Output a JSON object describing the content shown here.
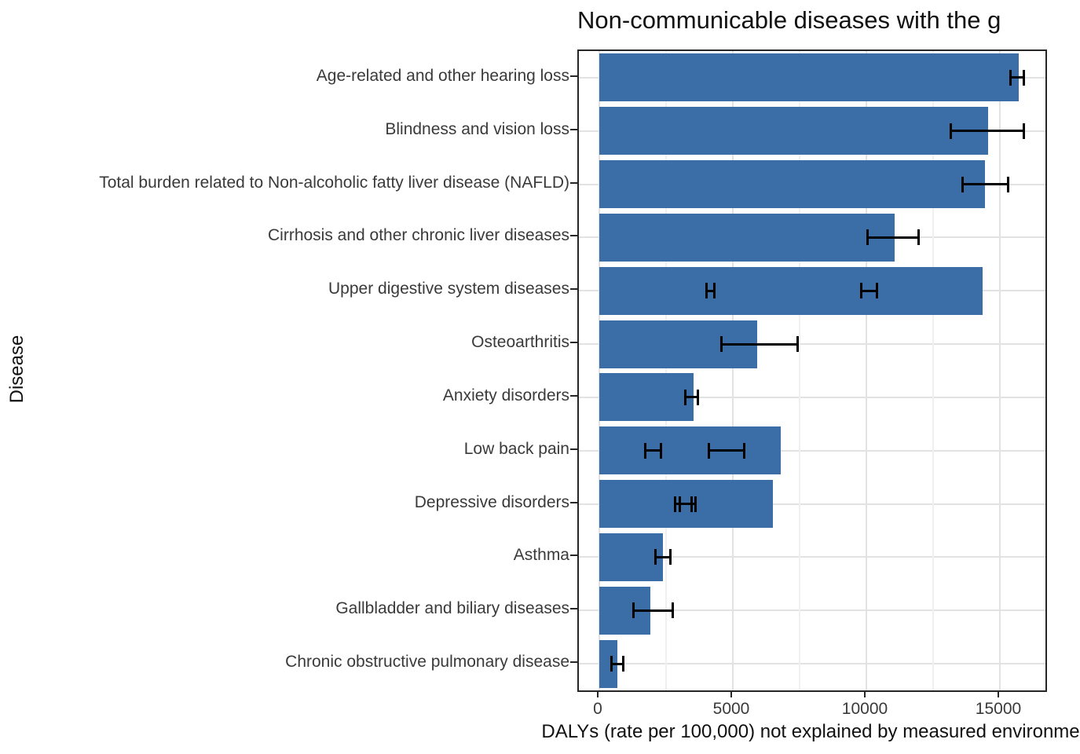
{
  "title": "Non-communicable diseases with the g",
  "axes": {
    "x_label": "DALYs (rate per 100,000) not explained by measured environme",
    "y_label": "Disease",
    "x_ticks": [
      0,
      5000,
      10000,
      15000
    ],
    "x_tick_labels": [
      "0",
      "5000",
      "10000",
      "15000"
    ],
    "x_minor_ticks": [
      2500,
      7500,
      12500
    ]
  },
  "colors": {
    "bar_fill": "#3B6EA7",
    "error_bar": "#000000",
    "grid_major": "#e2e2e2",
    "grid_minor": "#f0f0f0",
    "panel_border": "#262626",
    "axis_text": "#3a3a3a",
    "title_text": "#111111"
  },
  "chart_data": {
    "type": "bar",
    "orientation": "horizontal",
    "title": "Non-communicable diseases with the g",
    "xlabel": "DALYs (rate per 100,000) not explained by measured environme",
    "ylabel": "Disease",
    "xlim": [
      -765,
      16700
    ],
    "x_ticks": [
      0,
      5000,
      10000,
      15000
    ],
    "grid": "vertical major at ticks + minor every 2500; horizontal major at category centers",
    "legend": "none",
    "bar_color": "#3B6EA7",
    "categories": [
      "Age-related and other hearing loss",
      "Blindness and vision loss",
      "Total burden related to Non-alcoholic fatty liver disease (NAFLD)",
      "Cirrhosis and other chronic liver diseases",
      "Upper digestive system diseases",
      "Osteoarthritis",
      "Anxiety disorders",
      "Low back pain",
      "Depressive disorders",
      "Asthma",
      "Gallbladder and biliary diseases",
      "Chronic obstructive pulmonary disease"
    ],
    "values": [
      15700,
      14550,
      14450,
      11050,
      14350,
      5900,
      3520,
      6780,
      6510,
      2390,
      1900,
      680
    ],
    "error_bars": [
      [
        [
          15400,
          15900
        ]
      ],
      [
        [
          13150,
          15900
        ]
      ],
      [
        [
          13600,
          15300
        ]
      ],
      [
        [
          10030,
          11950
        ]
      ],
      [
        [
          4000,
          4320
        ],
        [
          9820,
          10410
        ]
      ],
      [
        [
          4580,
          7420
        ]
      ],
      [
        [
          3210,
          3700
        ]
      ],
      [
        [
          1710,
          2320
        ],
        [
          4110,
          5430
        ]
      ],
      [
        [
          2850,
          3450
        ],
        [
          3000,
          3590
        ]
      ],
      [
        [
          2100,
          2650
        ]
      ],
      [
        [
          1280,
          2750
        ]
      ],
      [
        [
          470,
          910
        ]
      ]
    ]
  }
}
